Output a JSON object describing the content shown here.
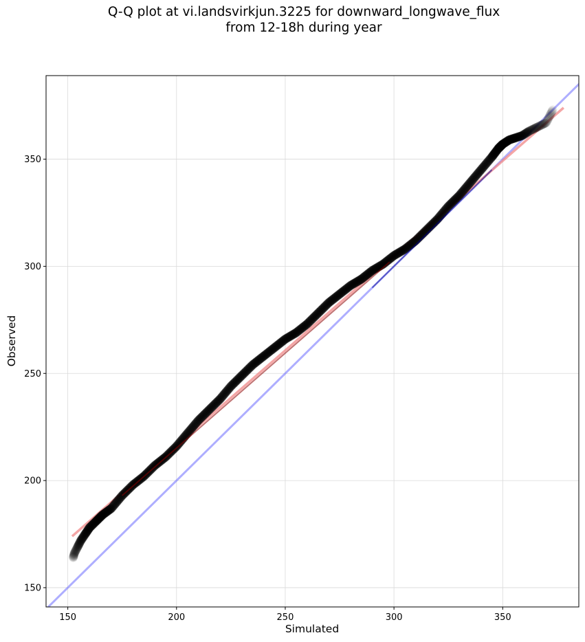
{
  "chart_data": {
    "type": "scatter",
    "title_line1": "Q-Q plot at vi.landsvirkjun.3225 for downward_longwave_flux",
    "title_line2": "from 12-18h during year",
    "xlabel": "Simulated",
    "ylabel": "Observed",
    "xlim": [
      140,
      385
    ],
    "ylim": [
      141,
      389
    ],
    "xticks": [
      150,
      200,
      250,
      300,
      350
    ],
    "yticks": [
      150,
      200,
      250,
      300,
      350
    ],
    "grid": true,
    "colors": {
      "points": "#000000",
      "identity_line": "#6b6bff",
      "fit_line": "#f08080",
      "fit_line_dark": "#8b0000",
      "identity_line_dark": "#00008b",
      "grid": "#d9d9d9"
    },
    "identity_line": {
      "x": [
        140,
        389
      ],
      "y": [
        140,
        389
      ]
    },
    "fit_line": {
      "x": [
        152,
        378
      ],
      "y": [
        174,
        374
      ]
    },
    "quantiles": {
      "x": [
        152.5,
        153,
        154.5,
        156,
        158,
        160,
        163,
        166,
        170,
        175,
        180,
        185,
        190,
        195,
        200,
        205,
        210,
        215,
        220,
        225,
        230,
        235,
        240,
        245,
        250,
        255,
        260,
        265,
        270,
        275,
        280,
        285,
        290,
        295,
        300,
        305,
        310,
        315,
        320,
        325,
        330,
        335,
        340,
        345,
        348,
        350,
        353,
        356,
        359,
        362,
        366,
        370,
        373
      ],
      "y": [
        164,
        166,
        169,
        172,
        175,
        178,
        181,
        184,
        187,
        193,
        198,
        202,
        207,
        211,
        216,
        222,
        228,
        233,
        238,
        244,
        249,
        254,
        258,
        262,
        266,
        269,
        273,
        278,
        283,
        287,
        291,
        294,
        298,
        301,
        305,
        308,
        312,
        317,
        322,
        328,
        333,
        339,
        345,
        351,
        355,
        357,
        359,
        360,
        361,
        363,
        365,
        367,
        373
      ]
    }
  }
}
